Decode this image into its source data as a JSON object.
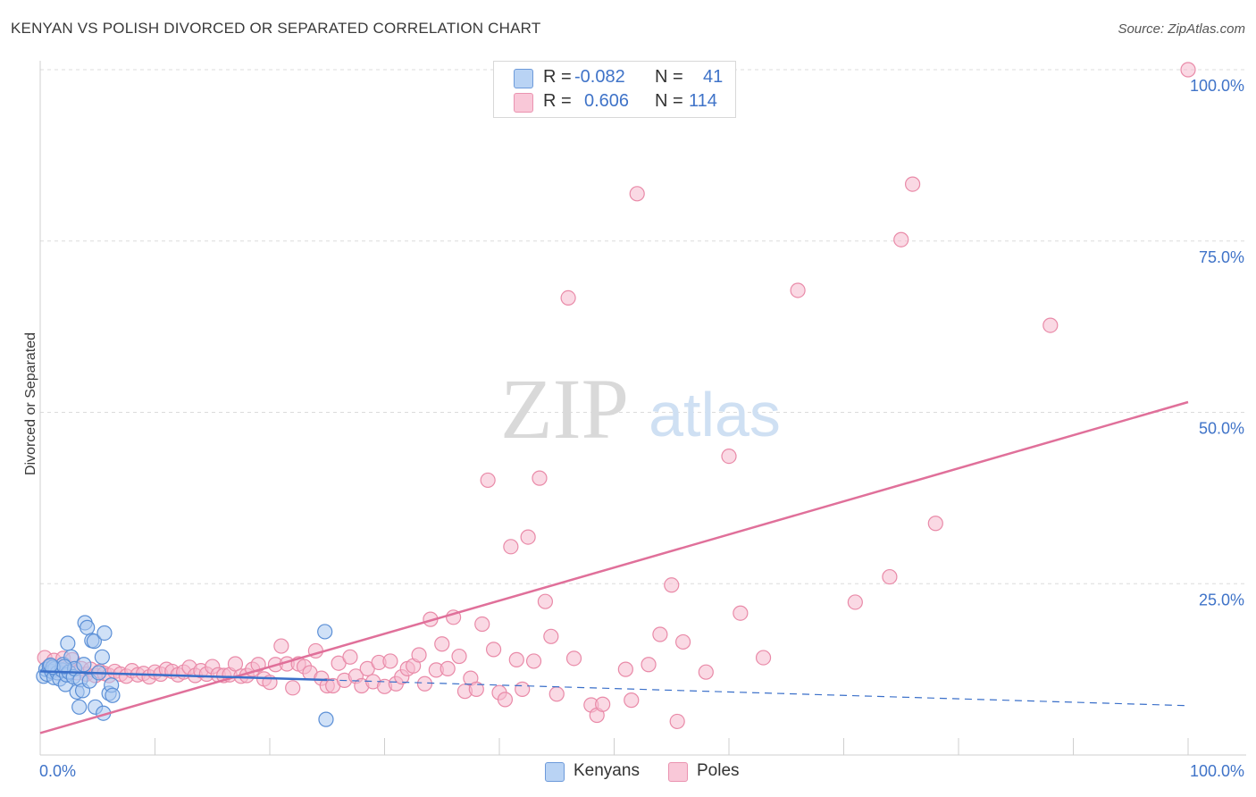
{
  "title": "KENYAN VS POLISH DIVORCED OR SEPARATED CORRELATION CHART",
  "source": "Source: ZipAtlas.com",
  "watermark": {
    "zip": "ZIP",
    "atlas": "atlas"
  },
  "colors": {
    "kenyans_fill": "#a9c8f0",
    "kenyans_stroke": "#5b8fd6",
    "kenyans_line": "#3a6fc9",
    "poles_fill": "#f6b9cd",
    "poles_stroke": "#e98aa8",
    "poles_line": "#e0709a",
    "axis_label": "#3f73c8",
    "grid": "#dcdcdc"
  },
  "legend": {
    "rows": [
      {
        "r_label": "R =",
        "r_value": "-0.082",
        "n_label": "N =",
        "n_value": "41"
      },
      {
        "r_label": "R =",
        "r_value": "0.606",
        "n_label": "N =",
        "n_value": "114"
      }
    ]
  },
  "bottom_legend": [
    "Kenyans",
    "Poles"
  ],
  "chart_data": {
    "type": "scatter",
    "title": "KENYAN VS POLISH DIVORCED OR SEPARATED CORRELATION CHART",
    "xlabel": "",
    "ylabel": "Divorced or Separated",
    "xlim": [
      0,
      100
    ],
    "ylim": [
      0,
      100
    ],
    "x_tick_labels": [
      "0.0%",
      "100.0%"
    ],
    "y_ticks": [
      25,
      50,
      75,
      100
    ],
    "y_tick_labels": [
      "25.0%",
      "50.0%",
      "75.0%",
      "100.0%"
    ],
    "grid": true,
    "legend_position": "top-center",
    "series": [
      {
        "name": "Kenyans",
        "R": -0.082,
        "N": 41,
        "trend": {
          "x0": 0,
          "y0": 12.2,
          "x1": 100,
          "y1": 7.2,
          "solid_until_x": 25
        },
        "points": [
          [
            0.3,
            11.5
          ],
          [
            0.5,
            12.5
          ],
          [
            0.6,
            11.8
          ],
          [
            0.8,
            12.9
          ],
          [
            1.0,
            12.2
          ],
          [
            1.2,
            11.3
          ],
          [
            1.3,
            12.6
          ],
          [
            1.5,
            12.0
          ],
          [
            1.7,
            11.1
          ],
          [
            1.9,
            12.4
          ],
          [
            2.0,
            13.2
          ],
          [
            2.2,
            10.3
          ],
          [
            2.3,
            11.7
          ],
          [
            2.4,
            16.3
          ],
          [
            2.5,
            12.1
          ],
          [
            2.7,
            14.3
          ],
          [
            2.9,
            11.4
          ],
          [
            3.0,
            12.6
          ],
          [
            3.2,
            9.2
          ],
          [
            3.4,
            7.0
          ],
          [
            3.5,
            11.0
          ],
          [
            3.7,
            9.4
          ],
          [
            3.8,
            13.2
          ],
          [
            3.9,
            19.3
          ],
          [
            4.1,
            18.6
          ],
          [
            4.3,
            10.8
          ],
          [
            4.5,
            16.7
          ],
          [
            4.7,
            16.6
          ],
          [
            4.8,
            7.0
          ],
          [
            5.1,
            12.0
          ],
          [
            5.4,
            14.3
          ],
          [
            5.5,
            6.1
          ],
          [
            5.6,
            17.8
          ],
          [
            6.0,
            9.0
          ],
          [
            6.2,
            10.2
          ],
          [
            6.3,
            8.7
          ],
          [
            1.1,
            12.8
          ],
          [
            2.1,
            12.9
          ],
          [
            0.9,
            13.1
          ],
          [
            24.8,
            18.0
          ],
          [
            24.9,
            5.2
          ]
        ]
      },
      {
        "name": "Poles",
        "R": 0.606,
        "N": 114,
        "trend": {
          "x0": 0,
          "y0": 3.2,
          "x1": 100,
          "y1": 51.5
        },
        "points": [
          [
            0.4,
            14.2
          ],
          [
            0.8,
            13.0
          ],
          [
            1.2,
            13.8
          ],
          [
            1.6,
            12.4
          ],
          [
            2.0,
            14.1
          ],
          [
            2.4,
            12.8
          ],
          [
            2.8,
            13.9
          ],
          [
            3.2,
            12.0
          ],
          [
            3.6,
            12.6
          ],
          [
            4.0,
            11.8
          ],
          [
            4.4,
            12.5
          ],
          [
            4.8,
            11.6
          ],
          [
            5.2,
            12.2
          ],
          [
            5.6,
            11.9
          ],
          [
            6.0,
            11.6
          ],
          [
            6.5,
            12.2
          ],
          [
            7.0,
            11.8
          ],
          [
            7.5,
            11.5
          ],
          [
            8.0,
            12.3
          ],
          [
            8.5,
            11.7
          ],
          [
            9.0,
            11.9
          ],
          [
            9.5,
            11.4
          ],
          [
            10.0,
            12.1
          ],
          [
            10.5,
            11.8
          ],
          [
            11.0,
            12.5
          ],
          [
            11.5,
            12.2
          ],
          [
            12.0,
            11.7
          ],
          [
            12.5,
            12.1
          ],
          [
            13.0,
            12.8
          ],
          [
            13.5,
            11.6
          ],
          [
            14.0,
            12.3
          ],
          [
            14.5,
            11.8
          ],
          [
            15.0,
            12.9
          ],
          [
            15.5,
            11.7
          ],
          [
            16.0,
            11.6
          ],
          [
            16.5,
            11.7
          ],
          [
            17.0,
            13.3
          ],
          [
            17.5,
            11.5
          ],
          [
            18.0,
            11.6
          ],
          [
            18.5,
            12.5
          ],
          [
            19.0,
            13.2
          ],
          [
            19.5,
            11.1
          ],
          [
            20.0,
            10.6
          ],
          [
            20.5,
            13.2
          ],
          [
            21.0,
            15.9
          ],
          [
            21.5,
            13.3
          ],
          [
            22.0,
            9.8
          ],
          [
            22.5,
            13.3
          ],
          [
            23.0,
            12.9
          ],
          [
            23.5,
            12.0
          ],
          [
            24.0,
            15.2
          ],
          [
            24.5,
            11.2
          ],
          [
            25.0,
            10.1
          ],
          [
            25.5,
            10.1
          ],
          [
            26.0,
            13.4
          ],
          [
            26.5,
            10.9
          ],
          [
            27.0,
            14.3
          ],
          [
            27.5,
            11.5
          ],
          [
            28.0,
            10.1
          ],
          [
            28.5,
            12.6
          ],
          [
            29.0,
            10.7
          ],
          [
            29.5,
            13.5
          ],
          [
            30.0,
            10.0
          ],
          [
            30.5,
            13.7
          ],
          [
            31.0,
            10.4
          ],
          [
            31.5,
            11.4
          ],
          [
            32.0,
            12.6
          ],
          [
            32.5,
            13.0
          ],
          [
            33.0,
            14.6
          ],
          [
            33.5,
            10.4
          ],
          [
            34.0,
            19.8
          ],
          [
            34.5,
            12.4
          ],
          [
            35.0,
            16.2
          ],
          [
            35.5,
            12.6
          ],
          [
            36.0,
            20.1
          ],
          [
            36.5,
            14.4
          ],
          [
            37.0,
            9.3
          ],
          [
            37.5,
            11.2
          ],
          [
            38.0,
            9.6
          ],
          [
            38.5,
            19.1
          ],
          [
            39.0,
            40.1
          ],
          [
            39.5,
            15.4
          ],
          [
            40.0,
            9.1
          ],
          [
            40.5,
            8.1
          ],
          [
            41.0,
            30.4
          ],
          [
            41.5,
            13.9
          ],
          [
            42.0,
            9.6
          ],
          [
            42.5,
            31.8
          ],
          [
            43.0,
            13.7
          ],
          [
            43.5,
            40.4
          ],
          [
            44.0,
            22.4
          ],
          [
            44.5,
            17.3
          ],
          [
            45.0,
            8.9
          ],
          [
            46.0,
            66.7
          ],
          [
            46.5,
            14.1
          ],
          [
            48.0,
            7.3
          ],
          [
            48.5,
            5.8
          ],
          [
            49.0,
            7.4
          ],
          [
            51.0,
            12.5
          ],
          [
            51.5,
            8.0
          ],
          [
            52.0,
            81.9
          ],
          [
            53.0,
            13.2
          ],
          [
            54.0,
            17.6
          ],
          [
            55.0,
            24.8
          ],
          [
            55.5,
            4.9
          ],
          [
            56.0,
            16.5
          ],
          [
            58.0,
            12.1
          ],
          [
            60.0,
            43.6
          ],
          [
            61.0,
            20.7
          ],
          [
            63.0,
            14.2
          ],
          [
            66.0,
            67.8
          ],
          [
            71.0,
            22.3
          ],
          [
            74.0,
            26.0
          ],
          [
            75.0,
            75.2
          ],
          [
            76.0,
            83.3
          ],
          [
            78.0,
            33.8
          ],
          [
            88.0,
            62.7
          ],
          [
            100.0,
            100.0
          ]
        ]
      }
    ]
  }
}
